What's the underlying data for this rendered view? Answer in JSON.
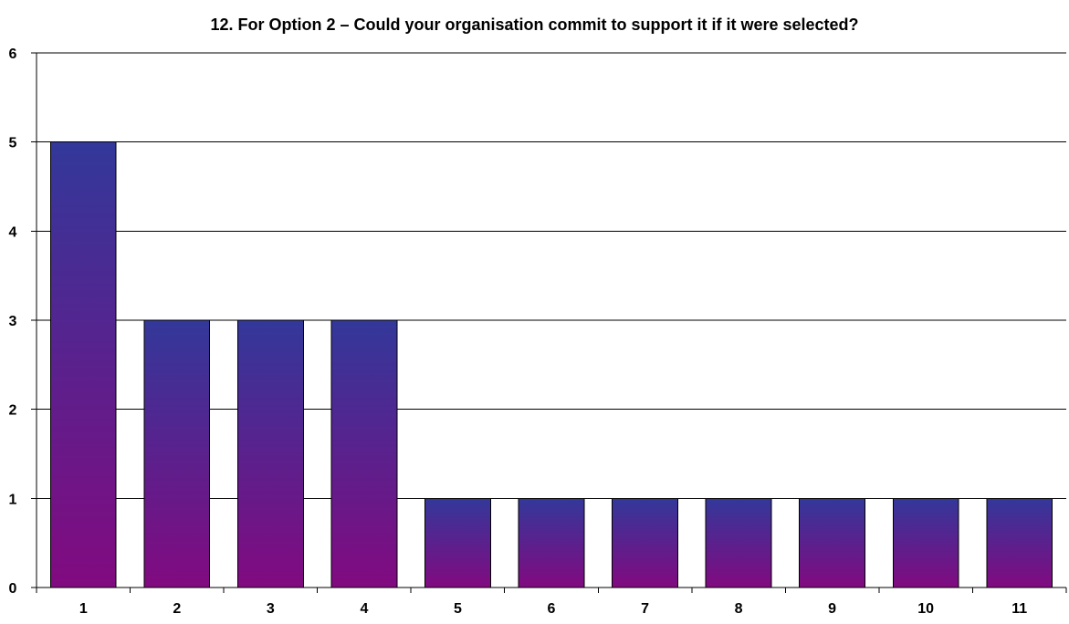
{
  "chart_data": {
    "type": "bar",
    "title": "12. For Option 2 – Could your organisation commit to support it if it were selected?",
    "xlabel": "",
    "ylabel": "",
    "categories": [
      "1",
      "2",
      "3",
      "4",
      "5",
      "6",
      "7",
      "8",
      "9",
      "10",
      "11"
    ],
    "values": [
      5,
      3,
      3,
      3,
      1,
      1,
      1,
      1,
      1,
      1,
      1
    ],
    "ylim": [
      0,
      6
    ],
    "yticks": [
      "0",
      "1",
      "2",
      "3",
      "4",
      "5",
      "6"
    ],
    "grid": true,
    "legend": "none",
    "colors": {
      "bar_top": "#33389a",
      "bar_bottom": "#820a80",
      "gridline": "#000000",
      "axis": "#000000",
      "background": "#ffffff"
    }
  }
}
